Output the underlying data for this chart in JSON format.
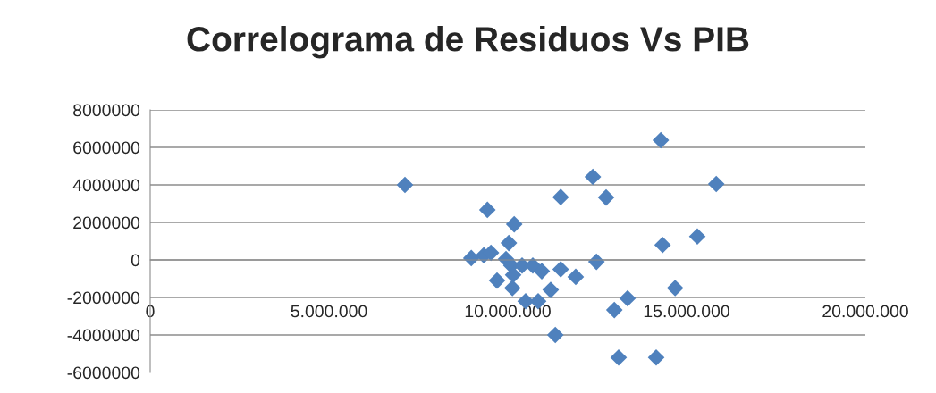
{
  "chart_data": {
    "type": "scatter",
    "title": "Correlograma de Residuos Vs PIB",
    "x": [
      7125000,
      8980000,
      9430000,
      9330000,
      9530000,
      9700000,
      9950000,
      10030000,
      10180000,
      10100000,
      10150000,
      10130000,
      10400000,
      10500000,
      10700000,
      10850000,
      10950000,
      11200000,
      11480000,
      11480000,
      11330000,
      11900000,
      12380000,
      12480000,
      12750000,
      12980000,
      13100000,
      13350000,
      14280000,
      14330000,
      14150000,
      14680000,
      15300000,
      15830000
    ],
    "series": [
      {
        "color": "#4f81bd",
        "values": [
          4000000,
          100000,
          2670000,
          250000,
          380000,
          -1100000,
          50000,
          900000,
          1900000,
          -300000,
          -800000,
          -1500000,
          -300000,
          -2200000,
          -300000,
          -2200000,
          -600000,
          -1600000,
          -500000,
          3350000,
          -4000000,
          -900000,
          4430000,
          -100000,
          3330000,
          -2670000,
          -5200000,
          -2050000,
          6380000,
          800000,
          -5200000,
          -1500000,
          1250000,
          4050000
        ]
      }
    ],
    "xlim": [
      0,
      20000000
    ],
    "ylim": [
      -6000000,
      8000000
    ],
    "xticks": [
      {
        "value": 0,
        "label": "0"
      },
      {
        "value": 5000000,
        "label": "5.000.000"
      },
      {
        "value": 10000000,
        "label": "10.000.000"
      },
      {
        "value": 15000000,
        "label": "15.000.000"
      },
      {
        "value": 20000000,
        "label": "20.000.000"
      }
    ],
    "yticks": [
      -6000000,
      -4000000,
      -2000000,
      0,
      2000000,
      4000000,
      6000000,
      8000000
    ],
    "grid": "y",
    "marker": "diamond",
    "legend": false
  }
}
